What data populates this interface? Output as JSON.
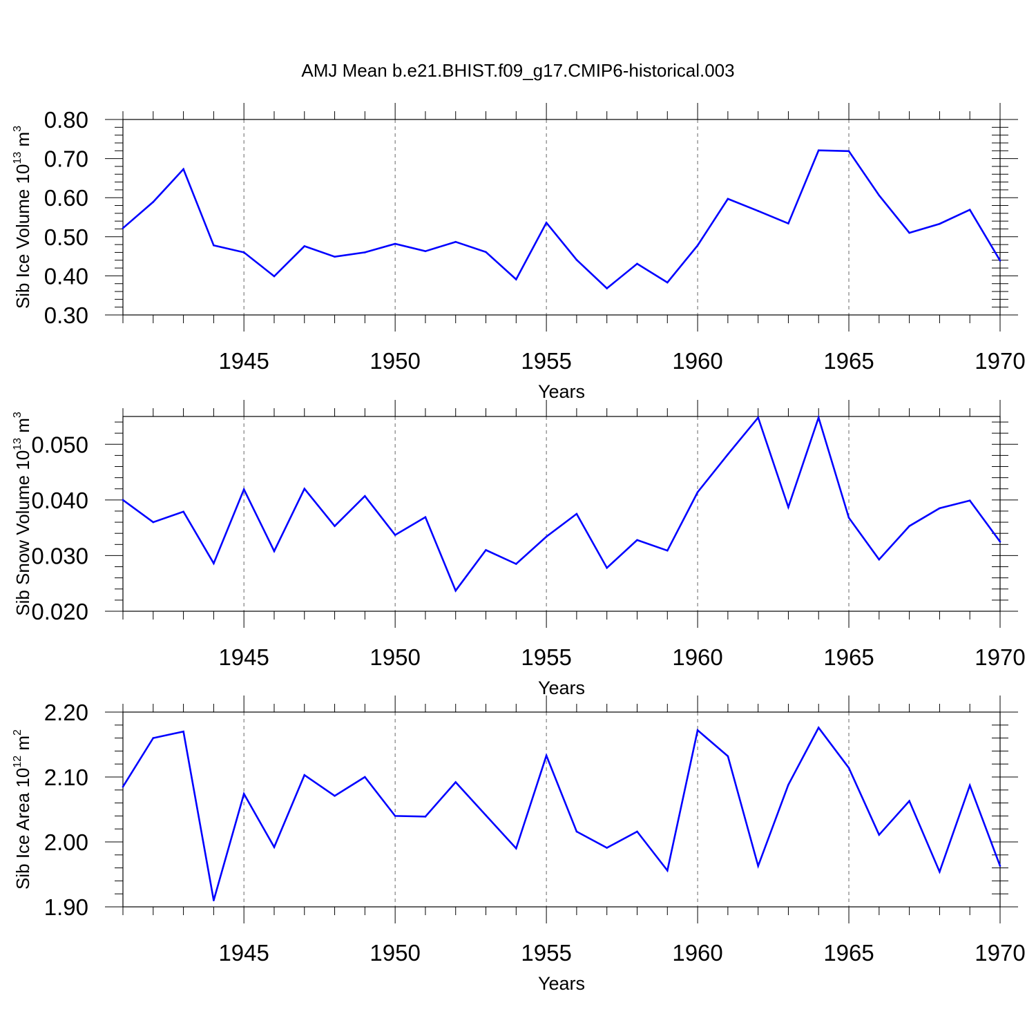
{
  "title": "AMJ Mean b.e21.BHIST.f09_g17.CMIP6-historical.003",
  "colors": {
    "series": "#0000ff",
    "axes": "#000000",
    "grid": "#000000"
  },
  "chart_data": [
    {
      "type": "line",
      "xlabel": "Years",
      "ylabel": {
        "text": "Sib Ice Volume 10",
        "exp": "13",
        "unit": " m",
        "unit_exp": "3"
      },
      "xlim": [
        1941,
        1970
      ],
      "ylim": [
        0.3,
        0.8
      ],
      "xticks": [
        "1945",
        "1950",
        "1955",
        "1960",
        "1965",
        "1970"
      ],
      "yticks": [
        "0.30",
        "0.40",
        "0.50",
        "0.60",
        "0.70",
        "0.80"
      ],
      "grid": "vertical dashed at major x ticks",
      "x": [
        1941,
        1942,
        1943,
        1944,
        1945,
        1946,
        1947,
        1948,
        1949,
        1950,
        1951,
        1952,
        1953,
        1954,
        1955,
        1956,
        1957,
        1958,
        1959,
        1960,
        1961,
        1962,
        1963,
        1964,
        1965,
        1966,
        1967,
        1968,
        1969,
        1970
      ],
      "series": [
        {
          "values": [
            0.522,
            0.589,
            0.673,
            0.478,
            0.46,
            0.399,
            0.476,
            0.449,
            0.46,
            0.482,
            0.463,
            0.487,
            0.461,
            0.391,
            0.536,
            0.441,
            0.368,
            0.431,
            0.383,
            0.478,
            0.597,
            0.566,
            0.534,
            0.721,
            0.719,
            0.606,
            0.51,
            0.533,
            0.569,
            0.439
          ]
        }
      ]
    },
    {
      "type": "line",
      "xlabel": "Years",
      "ylabel": {
        "text": "Sib Snow Volume 10",
        "exp": "13",
        "unit": " m",
        "unit_exp": "3"
      },
      "xlim": [
        1941,
        1970
      ],
      "ylim": [
        0.02,
        0.055
      ],
      "xticks": [
        "1945",
        "1950",
        "1955",
        "1960",
        "1965",
        "1970"
      ],
      "yticks": [
        "0.020",
        "0.030",
        "0.040",
        "0.050"
      ],
      "grid": "vertical dashed at major x ticks",
      "x": [
        1941,
        1942,
        1943,
        1944,
        1945,
        1946,
        1947,
        1948,
        1949,
        1950,
        1951,
        1952,
        1953,
        1954,
        1955,
        1956,
        1957,
        1958,
        1959,
        1960,
        1961,
        1962,
        1963,
        1964,
        1965,
        1966,
        1967,
        1968,
        1969,
        1970
      ],
      "series": [
        {
          "values": [
            0.04,
            0.036,
            0.0379,
            0.0286,
            0.0419,
            0.0308,
            0.042,
            0.0353,
            0.0407,
            0.0337,
            0.0369,
            0.0237,
            0.031,
            0.0285,
            0.0334,
            0.0375,
            0.0278,
            0.0328,
            0.0309,
            0.0414,
            0.0482,
            0.0548,
            0.0387,
            0.0548,
            0.0368,
            0.0293,
            0.0353,
            0.0385,
            0.0399,
            0.0325
          ]
        }
      ]
    },
    {
      "type": "line",
      "xlabel": "Years",
      "ylabel": {
        "text": "Sib Ice Area 10",
        "exp": "12",
        "unit": " m",
        "unit_exp": "2"
      },
      "xlim": [
        1941,
        1970
      ],
      "ylim": [
        1.9,
        2.2
      ],
      "xticks": [
        "1945",
        "1950",
        "1955",
        "1960",
        "1965",
        "1970"
      ],
      "yticks": [
        "1.90",
        "2.00",
        "2.10",
        "2.20"
      ],
      "grid": "vertical dashed at major x ticks",
      "x": [
        1941,
        1942,
        1943,
        1944,
        1945,
        1946,
        1947,
        1948,
        1949,
        1950,
        1951,
        1952,
        1953,
        1954,
        1955,
        1956,
        1957,
        1958,
        1959,
        1960,
        1961,
        1962,
        1963,
        1964,
        1965,
        1966,
        1967,
        1968,
        1969,
        1970
      ],
      "series": [
        {
          "values": [
            2.085,
            2.16,
            2.17,
            1.91,
            2.074,
            1.992,
            2.103,
            2.071,
            2.1,
            2.04,
            2.039,
            2.092,
            2.041,
            1.99,
            2.133,
            2.016,
            1.991,
            2.016,
            1.956,
            2.172,
            2.132,
            1.963,
            2.088,
            2.176,
            2.114,
            2.011,
            2.063,
            1.954,
            2.087,
            1.963
          ]
        }
      ]
    }
  ]
}
